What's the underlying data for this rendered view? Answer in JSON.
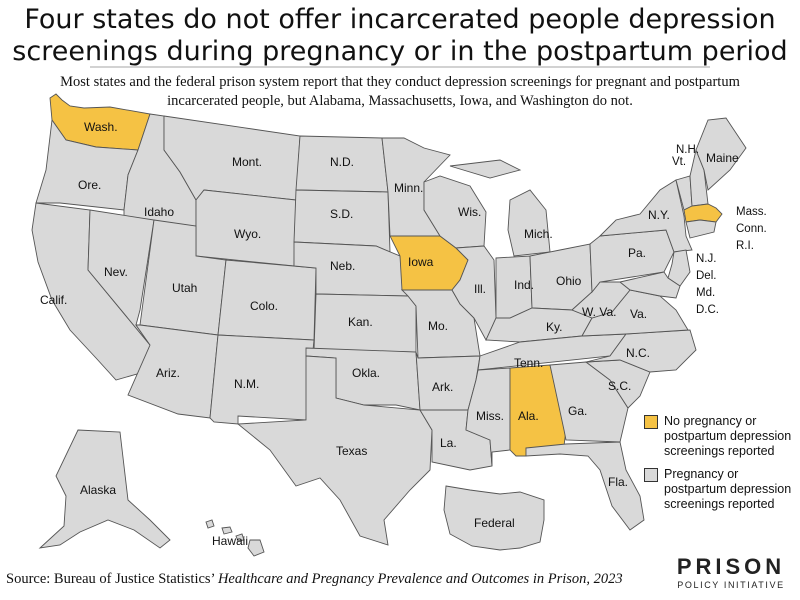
{
  "title_line1": "Four states do not offer incarcerated people depression",
  "title_line2": "screenings during pregnancy or in the postpartum period",
  "subtitle_line1": "Most states and the federal prison system report that they conduct depression screenings for pregnant and postpartum",
  "subtitle_line2": "incarcerated people, but Alabama, Massachusetts, Iowa, and Washington do not.",
  "colors": {
    "highlight": "#f5c244",
    "default": "#d9d9d9",
    "border": "#555555"
  },
  "legend": [
    {
      "label": "No pregnancy or postpartum depression screenings reported",
      "color": "#f5c244"
    },
    {
      "label": "Pregnancy or postpartum depression screenings reported",
      "color": "#d9d9d9"
    }
  ],
  "highlighted_states": [
    "Wash.",
    "Iowa",
    "Ala.",
    "Mass."
  ],
  "labels": {
    "wash": "Wash.",
    "ore": "Ore.",
    "calif": "Calif.",
    "idaho": "Idaho",
    "nev": "Nev.",
    "mont": "Mont.",
    "wyo": "Wyo.",
    "utah": "Utah",
    "ariz": "Ariz.",
    "colo": "Colo.",
    "nm": "N.M.",
    "nd": "N.D.",
    "sd": "S.D.",
    "neb": "Neb.",
    "kan": "Kan.",
    "okla": "Okla.",
    "texas": "Texas",
    "minn": "Minn.",
    "iowa": "Iowa",
    "mo": "Mo.",
    "ark": "Ark.",
    "la": "La.",
    "wis": "Wis.",
    "ill": "Ill.",
    "mich": "Mich.",
    "ind": "Ind.",
    "ohio": "Ohio",
    "ky": "Ky.",
    "tenn": "Tenn.",
    "miss": "Miss.",
    "ala": "Ala.",
    "ga": "Ga.",
    "fla": "Fla.",
    "sc": "S.C.",
    "nc": "N.C.",
    "va": "Va.",
    "wva": "W. Va.",
    "pa": "Pa.",
    "ny": "N.Y.",
    "nh": "N.H.",
    "vt": "Vt.",
    "maine": "Maine",
    "mass": "Mass.",
    "conn": "Conn.",
    "ri": "R.I.",
    "nj": "N.J.",
    "del": "Del.",
    "md": "Md.",
    "dc": "D.C.",
    "alaska": "Alaska",
    "hawaii": "Hawaii",
    "federal": "Federal"
  },
  "source_prefix": "Source: Bureau of Justice Statistics’ ",
  "source_title": "Healthcare and Pregnancy Prevalence and Outcomes in Prison, 2023",
  "logo_line1": "PRISON",
  "logo_line2": "POLICY INITIATIVE"
}
